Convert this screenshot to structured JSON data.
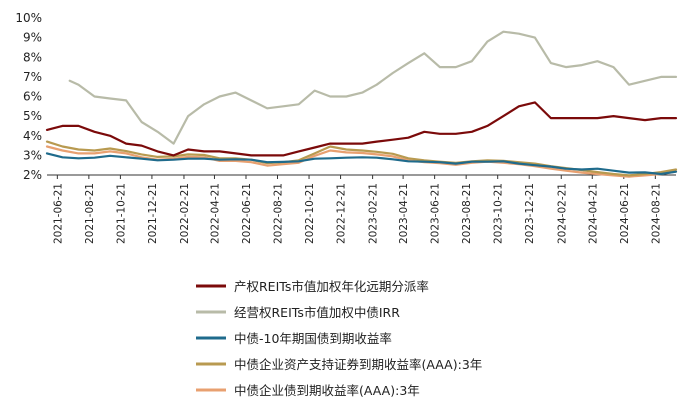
{
  "chart_data": {
    "type": "line",
    "title": "",
    "xlabel": "",
    "ylabel": "",
    "ylim": [
      0.02,
      0.1
    ],
    "y_tick_labels": [
      "2%",
      "3%",
      "4%",
      "5%",
      "6%",
      "7%",
      "8%",
      "9%",
      "10%"
    ],
    "x_range": [
      "2021-06-01",
      "2024-09-30"
    ],
    "x_tick_labels": [
      "2021-06-21",
      "2021-08-21",
      "2021-10-21",
      "2021-12-21",
      "2022-02-21",
      "2022-04-21",
      "2022-06-21",
      "2022-08-21",
      "2022-10-21",
      "2022-12-21",
      "2023-02-21",
      "2023-04-21",
      "2023-06-21",
      "2023-08-21",
      "2023-10-21",
      "2023-12-21",
      "2024-02-21",
      "2024-04-21",
      "2024-06-21",
      "2024-08-21"
    ],
    "grid": false,
    "legend_position": "bottom",
    "series": [
      {
        "name": "产权REITs市值加权年化远期分派率",
        "color": "#7b0a0a",
        "points": [
          [
            "2021-06-01",
            0.043
          ],
          [
            "2021-07-01",
            0.045
          ],
          [
            "2021-08-01",
            0.045
          ],
          [
            "2021-09-01",
            0.042
          ],
          [
            "2021-10-01",
            0.04
          ],
          [
            "2021-11-01",
            0.036
          ],
          [
            "2021-12-01",
            0.035
          ],
          [
            "2022-01-01",
            0.032
          ],
          [
            "2022-02-01",
            0.03
          ],
          [
            "2022-03-01",
            0.033
          ],
          [
            "2022-04-01",
            0.032
          ],
          [
            "2022-05-01",
            0.032
          ],
          [
            "2022-06-01",
            0.031
          ],
          [
            "2022-07-01",
            0.03
          ],
          [
            "2022-08-01",
            0.03
          ],
          [
            "2022-09-01",
            0.03
          ],
          [
            "2022-10-01",
            0.032
          ],
          [
            "2022-11-01",
            0.034
          ],
          [
            "2022-12-01",
            0.036
          ],
          [
            "2023-01-01",
            0.036
          ],
          [
            "2023-02-01",
            0.036
          ],
          [
            "2023-03-01",
            0.037
          ],
          [
            "2023-04-01",
            0.038
          ],
          [
            "2023-05-01",
            0.039
          ],
          [
            "2023-06-01",
            0.042
          ],
          [
            "2023-07-01",
            0.041
          ],
          [
            "2023-08-01",
            0.041
          ],
          [
            "2023-09-01",
            0.042
          ],
          [
            "2023-10-01",
            0.045
          ],
          [
            "2023-11-01",
            0.05
          ],
          [
            "2023-12-01",
            0.055
          ],
          [
            "2024-01-01",
            0.057
          ],
          [
            "2024-02-01",
            0.049
          ],
          [
            "2024-03-01",
            0.049
          ],
          [
            "2024-04-01",
            0.049
          ],
          [
            "2024-05-01",
            0.049
          ],
          [
            "2024-06-01",
            0.05
          ],
          [
            "2024-07-01",
            0.049
          ],
          [
            "2024-08-01",
            0.048
          ],
          [
            "2024-09-01",
            0.049
          ],
          [
            "2024-09-30",
            0.049
          ]
        ]
      },
      {
        "name": "经营权REITs市值加权中债IRR",
        "color": "#b8bba8",
        "points": [
          [
            "2021-07-15",
            0.068
          ],
          [
            "2021-08-01",
            0.066
          ],
          [
            "2021-09-01",
            0.06
          ],
          [
            "2021-10-01",
            0.059
          ],
          [
            "2021-11-01",
            0.058
          ],
          [
            "2021-12-01",
            0.047
          ],
          [
            "2022-01-01",
            0.042
          ],
          [
            "2022-02-01",
            0.036
          ],
          [
            "2022-03-01",
            0.05
          ],
          [
            "2022-04-01",
            0.056
          ],
          [
            "2022-05-01",
            0.06
          ],
          [
            "2022-06-01",
            0.062
          ],
          [
            "2022-07-01",
            0.058
          ],
          [
            "2022-08-01",
            0.054
          ],
          [
            "2022-09-01",
            0.055
          ],
          [
            "2022-10-01",
            0.056
          ],
          [
            "2022-11-01",
            0.063
          ],
          [
            "2022-12-01",
            0.06
          ],
          [
            "2023-01-01",
            0.06
          ],
          [
            "2023-02-01",
            0.062
          ],
          [
            "2023-03-01",
            0.066
          ],
          [
            "2023-04-01",
            0.072
          ],
          [
            "2023-05-01",
            0.077
          ],
          [
            "2023-06-01",
            0.082
          ],
          [
            "2023-07-01",
            0.075
          ],
          [
            "2023-08-01",
            0.075
          ],
          [
            "2023-09-01",
            0.078
          ],
          [
            "2023-10-01",
            0.088
          ],
          [
            "2023-11-01",
            0.093
          ],
          [
            "2023-12-01",
            0.092
          ],
          [
            "2024-01-01",
            0.09
          ],
          [
            "2024-02-01",
            0.077
          ],
          [
            "2024-03-01",
            0.075
          ],
          [
            "2024-04-01",
            0.076
          ],
          [
            "2024-05-01",
            0.078
          ],
          [
            "2024-06-01",
            0.075
          ],
          [
            "2024-07-01",
            0.066
          ],
          [
            "2024-08-01",
            0.068
          ],
          [
            "2024-09-01",
            0.07
          ],
          [
            "2024-09-30",
            0.07
          ]
        ]
      },
      {
        "name": "中债-10年期国债到期收益率",
        "color": "#1f6b8c",
        "points": [
          [
            "2021-06-01",
            0.031
          ],
          [
            "2021-07-01",
            0.029
          ],
          [
            "2021-08-01",
            0.0285
          ],
          [
            "2021-09-01",
            0.0288
          ],
          [
            "2021-10-01",
            0.0298
          ],
          [
            "2021-11-01",
            0.029
          ],
          [
            "2021-12-01",
            0.0283
          ],
          [
            "2022-01-01",
            0.0275
          ],
          [
            "2022-02-01",
            0.0278
          ],
          [
            "2022-03-01",
            0.0283
          ],
          [
            "2022-04-01",
            0.0283
          ],
          [
            "2022-05-01",
            0.0278
          ],
          [
            "2022-06-01",
            0.028
          ],
          [
            "2022-07-01",
            0.0278
          ],
          [
            "2022-08-01",
            0.0265
          ],
          [
            "2022-09-01",
            0.0267
          ],
          [
            "2022-10-01",
            0.027
          ],
          [
            "2022-11-01",
            0.0283
          ],
          [
            "2022-12-01",
            0.0285
          ],
          [
            "2023-01-01",
            0.0288
          ],
          [
            "2023-02-01",
            0.029
          ],
          [
            "2023-03-01",
            0.0288
          ],
          [
            "2023-04-01",
            0.028
          ],
          [
            "2023-05-01",
            0.027
          ],
          [
            "2023-06-01",
            0.0268
          ],
          [
            "2023-07-01",
            0.0265
          ],
          [
            "2023-08-01",
            0.0258
          ],
          [
            "2023-09-01",
            0.0268
          ],
          [
            "2023-10-01",
            0.0268
          ],
          [
            "2023-11-01",
            0.027
          ],
          [
            "2023-12-01",
            0.0258
          ],
          [
            "2024-01-01",
            0.025
          ],
          [
            "2024-02-01",
            0.0243
          ],
          [
            "2024-03-01",
            0.0232
          ],
          [
            "2024-04-01",
            0.0228
          ],
          [
            "2024-05-01",
            0.0232
          ],
          [
            "2024-06-01",
            0.0222
          ],
          [
            "2024-07-01",
            0.0212
          ],
          [
            "2024-08-01",
            0.0213
          ],
          [
            "2024-09-01",
            0.0205
          ],
          [
            "2024-09-30",
            0.0217
          ]
        ]
      },
      {
        "name": "中债企业资产支持证券到期收益率(AAA):3年",
        "color": "#b89a50",
        "points": [
          [
            "2021-06-01",
            0.037
          ],
          [
            "2021-07-01",
            0.0345
          ],
          [
            "2021-08-01",
            0.033
          ],
          [
            "2021-09-01",
            0.0325
          ],
          [
            "2021-10-01",
            0.0335
          ],
          [
            "2021-11-01",
            0.0322
          ],
          [
            "2021-12-01",
            0.0305
          ],
          [
            "2022-01-01",
            0.0292
          ],
          [
            "2022-02-01",
            0.0295
          ],
          [
            "2022-03-01",
            0.0305
          ],
          [
            "2022-04-01",
            0.0302
          ],
          [
            "2022-05-01",
            0.0285
          ],
          [
            "2022-06-01",
            0.0285
          ],
          [
            "2022-07-01",
            0.0278
          ],
          [
            "2022-08-01",
            0.026
          ],
          [
            "2022-09-01",
            0.0265
          ],
          [
            "2022-10-01",
            0.0275
          ],
          [
            "2022-11-01",
            0.031
          ],
          [
            "2022-12-01",
            0.0345
          ],
          [
            "2023-01-01",
            0.033
          ],
          [
            "2023-02-01",
            0.0325
          ],
          [
            "2023-03-01",
            0.0318
          ],
          [
            "2023-04-01",
            0.0308
          ],
          [
            "2023-05-01",
            0.0285
          ],
          [
            "2023-06-01",
            0.0275
          ],
          [
            "2023-07-01",
            0.0268
          ],
          [
            "2023-08-01",
            0.0262
          ],
          [
            "2023-09-01",
            0.027
          ],
          [
            "2023-10-01",
            0.0275
          ],
          [
            "2023-11-01",
            0.0272
          ],
          [
            "2023-12-01",
            0.0265
          ],
          [
            "2024-01-01",
            0.0258
          ],
          [
            "2024-02-01",
            0.0245
          ],
          [
            "2024-03-01",
            0.0235
          ],
          [
            "2024-04-01",
            0.0225
          ],
          [
            "2024-05-01",
            0.0215
          ],
          [
            "2024-06-01",
            0.0205
          ],
          [
            "2024-07-01",
            0.0198
          ],
          [
            "2024-08-01",
            0.0205
          ],
          [
            "2024-09-01",
            0.0215
          ],
          [
            "2024-09-30",
            0.0228
          ]
        ]
      },
      {
        "name": "中债企业债到期收益率(AAA):3年",
        "color": "#e8a070",
        "points": [
          [
            "2021-06-01",
            0.0345
          ],
          [
            "2021-07-01",
            0.0325
          ],
          [
            "2021-08-01",
            0.031
          ],
          [
            "2021-09-01",
            0.031
          ],
          [
            "2021-10-01",
            0.032
          ],
          [
            "2021-11-01",
            0.031
          ],
          [
            "2021-12-01",
            0.029
          ],
          [
            "2022-01-01",
            0.0278
          ],
          [
            "2022-02-01",
            0.0282
          ],
          [
            "2022-03-01",
            0.0292
          ],
          [
            "2022-04-01",
            0.029
          ],
          [
            "2022-05-01",
            0.0272
          ],
          [
            "2022-06-01",
            0.0272
          ],
          [
            "2022-07-01",
            0.0265
          ],
          [
            "2022-08-01",
            0.0248
          ],
          [
            "2022-09-01",
            0.0255
          ],
          [
            "2022-10-01",
            0.0262
          ],
          [
            "2022-11-01",
            0.0298
          ],
          [
            "2022-12-01",
            0.0325
          ],
          [
            "2023-01-01",
            0.0315
          ],
          [
            "2023-02-01",
            0.0312
          ],
          [
            "2023-03-01",
            0.0305
          ],
          [
            "2023-04-01",
            0.0295
          ],
          [
            "2023-05-01",
            0.0275
          ],
          [
            "2023-06-01",
            0.0265
          ],
          [
            "2023-07-01",
            0.026
          ],
          [
            "2023-08-01",
            0.0252
          ],
          [
            "2023-09-01",
            0.0262
          ],
          [
            "2023-10-01",
            0.0268
          ],
          [
            "2023-11-01",
            0.0262
          ],
          [
            "2023-12-01",
            0.0255
          ],
          [
            "2024-01-01",
            0.0245
          ],
          [
            "2024-02-01",
            0.0232
          ],
          [
            "2024-03-01",
            0.0222
          ],
          [
            "2024-04-01",
            0.0212
          ],
          [
            "2024-05-01",
            0.0205
          ],
          [
            "2024-06-01",
            0.0198
          ],
          [
            "2024-07-01",
            0.0192
          ],
          [
            "2024-08-01",
            0.0198
          ],
          [
            "2024-09-01",
            0.0205
          ],
          [
            "2024-09-30",
            0.0218
          ]
        ]
      }
    ]
  }
}
